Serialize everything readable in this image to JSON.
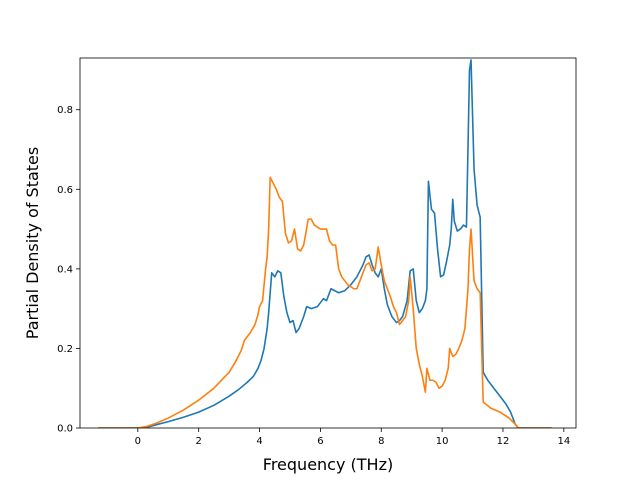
{
  "chart_data": {
    "type": "line",
    "title": "",
    "xlabel": "Frequency (THz)",
    "ylabel": "Partial Density of States",
    "xlim": [
      -1.9,
      14.4
    ],
    "ylim": [
      0,
      0.93
    ],
    "xticks": [
      0,
      2,
      4,
      6,
      8,
      10,
      12,
      14
    ],
    "yticks": [
      0.0,
      0.2,
      0.4,
      0.6,
      0.8
    ],
    "ytick_labels": [
      "0.0",
      "0.2",
      "0.4",
      "0.6",
      "0.8"
    ],
    "grid": false,
    "legend": "none",
    "series": [
      {
        "color": "#1f77b4",
        "x": [
          -1.3,
          0.0,
          0.3,
          0.6,
          1.0,
          1.5,
          2.0,
          2.5,
          3.0,
          3.3,
          3.6,
          3.8,
          3.95,
          4.05,
          4.15,
          4.25,
          4.3,
          4.4,
          4.5,
          4.6,
          4.7,
          4.8,
          4.9,
          5.0,
          5.1,
          5.2,
          5.3,
          5.45,
          5.55,
          5.7,
          5.9,
          6.0,
          6.1,
          6.2,
          6.35,
          6.6,
          6.8,
          7.0,
          7.2,
          7.4,
          7.5,
          7.6,
          7.7,
          7.8,
          7.9,
          8.0,
          8.1,
          8.2,
          8.35,
          8.5,
          8.6,
          8.7,
          8.85,
          8.95,
          9.05,
          9.15,
          9.25,
          9.35,
          9.45,
          9.5,
          9.55,
          9.65,
          9.75,
          9.85,
          9.95,
          10.05,
          10.15,
          10.25,
          10.3,
          10.35,
          10.4,
          10.5,
          10.6,
          10.7,
          10.8,
          10.9,
          10.95,
          11.05,
          11.15,
          11.25,
          11.35,
          11.5,
          11.7,
          11.9,
          12.1,
          12.25,
          12.4,
          12.5,
          13.6
        ],
        "y": [
          0.0,
          0.0,
          0.002,
          0.008,
          0.016,
          0.027,
          0.04,
          0.057,
          0.08,
          0.096,
          0.115,
          0.13,
          0.15,
          0.17,
          0.2,
          0.25,
          0.29,
          0.39,
          0.38,
          0.395,
          0.39,
          0.33,
          0.29,
          0.265,
          0.27,
          0.24,
          0.25,
          0.28,
          0.305,
          0.3,
          0.305,
          0.315,
          0.325,
          0.32,
          0.35,
          0.34,
          0.345,
          0.36,
          0.38,
          0.41,
          0.43,
          0.435,
          0.41,
          0.39,
          0.38,
          0.4,
          0.35,
          0.31,
          0.28,
          0.265,
          0.27,
          0.28,
          0.32,
          0.395,
          0.4,
          0.32,
          0.29,
          0.3,
          0.32,
          0.35,
          0.62,
          0.55,
          0.54,
          0.45,
          0.38,
          0.385,
          0.42,
          0.46,
          0.5,
          0.575,
          0.52,
          0.495,
          0.5,
          0.51,
          0.505,
          0.9,
          0.925,
          0.65,
          0.56,
          0.53,
          0.14,
          0.12,
          0.1,
          0.08,
          0.06,
          0.04,
          0.01,
          0.0,
          0.0
        ]
      },
      {
        "color": "#ff7f0e",
        "x": [
          -1.3,
          0.0,
          0.3,
          0.6,
          1.0,
          1.5,
          2.0,
          2.5,
          3.0,
          3.2,
          3.4,
          3.5,
          3.7,
          3.85,
          3.95,
          4.0,
          4.1,
          4.2,
          4.25,
          4.3,
          4.35,
          4.45,
          4.55,
          4.65,
          4.75,
          4.85,
          4.95,
          5.05,
          5.15,
          5.25,
          5.35,
          5.45,
          5.5,
          5.6,
          5.7,
          5.8,
          5.9,
          6.0,
          6.1,
          6.2,
          6.3,
          6.4,
          6.5,
          6.6,
          6.7,
          6.8,
          6.9,
          7.0,
          7.1,
          7.2,
          7.3,
          7.4,
          7.5,
          7.6,
          7.7,
          7.8,
          7.9,
          8.0,
          8.1,
          8.2,
          8.3,
          8.4,
          8.5,
          8.6,
          8.7,
          8.8,
          8.9,
          8.95,
          9.05,
          9.15,
          9.25,
          9.35,
          9.45,
          9.5,
          9.6,
          9.7,
          9.8,
          9.9,
          10.0,
          10.1,
          10.2,
          10.25,
          10.35,
          10.45,
          10.55,
          10.65,
          10.75,
          10.85,
          10.9,
          10.95,
          11.05,
          11.15,
          11.25,
          11.35,
          11.6,
          11.9,
          12.2,
          12.4,
          12.5,
          13.6
        ],
        "y": [
          0.0,
          0.0,
          0.004,
          0.012,
          0.025,
          0.045,
          0.07,
          0.1,
          0.14,
          0.165,
          0.195,
          0.22,
          0.24,
          0.26,
          0.285,
          0.305,
          0.32,
          0.4,
          0.43,
          0.5,
          0.63,
          0.615,
          0.6,
          0.58,
          0.57,
          0.49,
          0.465,
          0.47,
          0.5,
          0.45,
          0.445,
          0.46,
          0.48,
          0.525,
          0.525,
          0.51,
          0.505,
          0.5,
          0.5,
          0.5,
          0.47,
          0.46,
          0.46,
          0.4,
          0.38,
          0.37,
          0.36,
          0.355,
          0.35,
          0.35,
          0.37,
          0.39,
          0.41,
          0.415,
          0.395,
          0.4,
          0.455,
          0.41,
          0.37,
          0.35,
          0.33,
          0.305,
          0.29,
          0.26,
          0.27,
          0.28,
          0.32,
          0.38,
          0.3,
          0.2,
          0.16,
          0.13,
          0.09,
          0.15,
          0.12,
          0.12,
          0.115,
          0.1,
          0.105,
          0.12,
          0.15,
          0.2,
          0.18,
          0.185,
          0.2,
          0.22,
          0.25,
          0.35,
          0.45,
          0.5,
          0.37,
          0.35,
          0.34,
          0.065,
          0.05,
          0.04,
          0.025,
          0.01,
          0.0,
          0.0
        ]
      }
    ]
  }
}
